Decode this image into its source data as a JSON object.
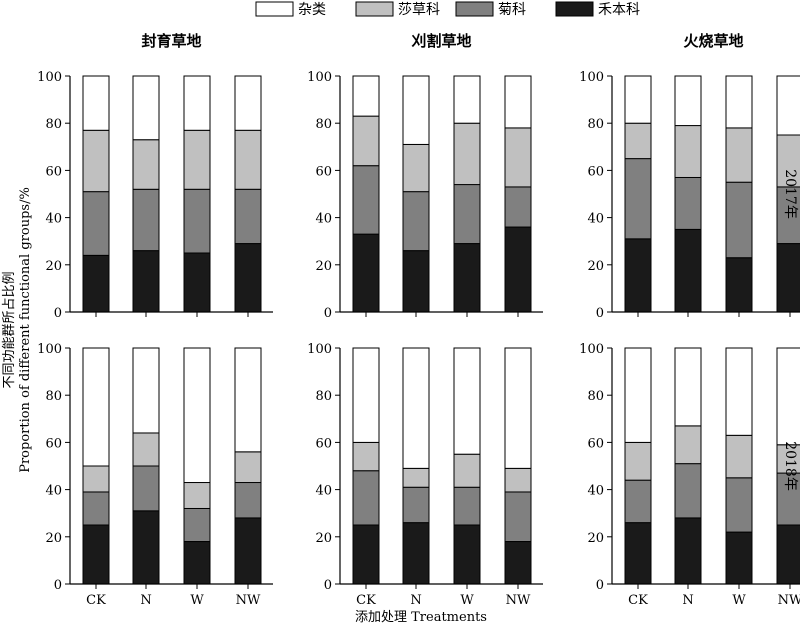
{
  "legend": {
    "items": [
      {
        "label": "杂类",
        "color": "#ffffff"
      },
      {
        "label": "莎草科",
        "color": "#c0c0c0"
      },
      {
        "label": "菊科",
        "color": "#808080"
      },
      {
        "label": "禾本科",
        "color": "#1a1a1a"
      }
    ]
  },
  "axis": {
    "ylabel_cn": "不同功能群所占比例",
    "ylabel_en": "Proportion of different functional groups/%",
    "xlabel": "添加处理 Treatments"
  },
  "columns": [
    "封育草地",
    "刈割草地",
    "火烧草地"
  ],
  "rows": [
    "2017年",
    "2018年"
  ],
  "chart_data": {
    "type": "bar",
    "stacked": true,
    "categories": [
      "CK",
      "N",
      "W",
      "NW"
    ],
    "ylim": [
      0,
      100
    ],
    "yticks": [
      0,
      20,
      40,
      60,
      80,
      100
    ],
    "stack_order": [
      "禾本科",
      "菊科",
      "莎草科",
      "杂类"
    ],
    "panels": [
      {
        "row": 0,
        "col": 0,
        "series": [
          {
            "name": "禾本科",
            "values": [
              24,
              26,
              25,
              29
            ]
          },
          {
            "name": "菊科",
            "values": [
              27,
              26,
              27,
              23
            ]
          },
          {
            "name": "莎草科",
            "values": [
              26,
              21,
              25,
              25
            ]
          },
          {
            "name": "杂类",
            "values": [
              23,
              27,
              23,
              23
            ]
          }
        ]
      },
      {
        "row": 0,
        "col": 1,
        "series": [
          {
            "name": "禾本科",
            "values": [
              33,
              26,
              29,
              36
            ]
          },
          {
            "name": "菊科",
            "values": [
              29,
              25,
              25,
              17
            ]
          },
          {
            "name": "莎草科",
            "values": [
              21,
              20,
              26,
              25
            ]
          },
          {
            "name": "杂类",
            "values": [
              17,
              29,
              20,
              22
            ]
          }
        ]
      },
      {
        "row": 0,
        "col": 2,
        "series": [
          {
            "name": "禾本科",
            "values": [
              31,
              35,
              23,
              29
            ]
          },
          {
            "name": "菊科",
            "values": [
              34,
              22,
              32,
              24
            ]
          },
          {
            "name": "莎草科",
            "values": [
              15,
              22,
              23,
              22
            ]
          },
          {
            "name": "杂类",
            "values": [
              20,
              21,
              22,
              25
            ]
          }
        ]
      },
      {
        "row": 1,
        "col": 0,
        "series": [
          {
            "name": "禾本科",
            "values": [
              25,
              31,
              18,
              28
            ]
          },
          {
            "name": "菊科",
            "values": [
              14,
              19,
              14,
              15
            ]
          },
          {
            "name": "莎草科",
            "values": [
              11,
              14,
              11,
              13
            ]
          },
          {
            "name": "杂类",
            "values": [
              50,
              36,
              57,
              44
            ]
          }
        ]
      },
      {
        "row": 1,
        "col": 1,
        "series": [
          {
            "name": "禾本科",
            "values": [
              25,
              26,
              25,
              18
            ]
          },
          {
            "name": "菊科",
            "values": [
              23,
              15,
              16,
              21
            ]
          },
          {
            "name": "莎草科",
            "values": [
              12,
              8,
              14,
              10
            ]
          },
          {
            "name": "杂类",
            "values": [
              40,
              51,
              45,
              51
            ]
          }
        ]
      },
      {
        "row": 1,
        "col": 2,
        "series": [
          {
            "name": "禾本科",
            "values": [
              26,
              28,
              22,
              25
            ]
          },
          {
            "name": "菊科",
            "values": [
              18,
              23,
              23,
              22
            ]
          },
          {
            "name": "莎草科",
            "values": [
              16,
              16,
              18,
              12
            ]
          },
          {
            "name": "杂类",
            "values": [
              40,
              33,
              37,
              41
            ]
          }
        ]
      }
    ]
  }
}
